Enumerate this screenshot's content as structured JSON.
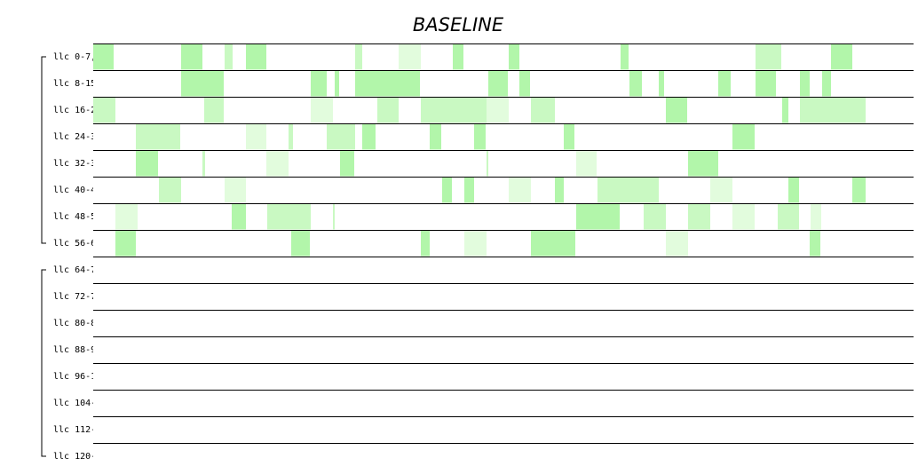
{
  "title": "BASELINE",
  "rows": [
    {
      "label": "llc 0-7,",
      "blocks": [
        [
          0,
          23,
          3
        ],
        [
          99,
          123,
          3
        ],
        [
          148,
          157,
          2
        ],
        [
          172,
          195,
          3
        ],
        [
          295,
          303,
          2
        ],
        [
          344,
          369,
          1
        ],
        [
          405,
          417,
          3
        ],
        [
          468,
          480,
          3
        ],
        [
          594,
          603,
          3
        ],
        [
          746,
          775,
          2
        ],
        [
          831,
          855,
          3
        ]
      ]
    },
    {
      "label": "llc 8-15",
      "blocks": [
        [
          99,
          147,
          3
        ],
        [
          245,
          263,
          3
        ],
        [
          272,
          277,
          3
        ],
        [
          295,
          368,
          3
        ],
        [
          445,
          467,
          3
        ],
        [
          480,
          492,
          3
        ],
        [
          604,
          618,
          3
        ],
        [
          637,
          643,
          3
        ],
        [
          704,
          718,
          3
        ],
        [
          746,
          769,
          3
        ],
        [
          796,
          807,
          3
        ],
        [
          821,
          831,
          3
        ]
      ]
    },
    {
      "label": "llc 16-2",
      "blocks": [
        [
          0,
          25,
          2
        ],
        [
          125,
          147,
          2
        ],
        [
          245,
          270,
          1
        ],
        [
          320,
          344,
          2
        ],
        [
          369,
          444,
          2
        ],
        [
          443,
          468,
          1
        ],
        [
          493,
          520,
          2
        ],
        [
          645,
          669,
          3
        ],
        [
          776,
          783,
          3
        ],
        [
          796,
          870,
          2
        ]
      ]
    },
    {
      "label": "llc 24-3",
      "blocks": [
        [
          48,
          98,
          2
        ],
        [
          172,
          195,
          1
        ],
        [
          220,
          225,
          2
        ],
        [
          263,
          295,
          2
        ],
        [
          303,
          318,
          3
        ],
        [
          379,
          392,
          3
        ],
        [
          429,
          442,
          3
        ],
        [
          530,
          542,
          3
        ],
        [
          720,
          745,
          3
        ]
      ]
    },
    {
      "label": "llc 32-3",
      "blocks": [
        [
          48,
          73,
          3
        ],
        [
          123,
          126,
          2
        ],
        [
          195,
          220,
          1
        ],
        [
          278,
          294,
          3
        ],
        [
          443,
          445,
          2
        ],
        [
          544,
          567,
          1
        ],
        [
          670,
          704,
          3
        ]
      ]
    },
    {
      "label": "llc 40-4",
      "blocks": [
        [
          74,
          99,
          2
        ],
        [
          148,
          172,
          1
        ],
        [
          393,
          404,
          3
        ],
        [
          418,
          429,
          3
        ],
        [
          468,
          493,
          1
        ],
        [
          520,
          530,
          3
        ],
        [
          568,
          637,
          2
        ],
        [
          695,
          720,
          1
        ],
        [
          783,
          795,
          3
        ],
        [
          855,
          870,
          3
        ]
      ]
    },
    {
      "label": "llc 48-5",
      "blocks": [
        [
          25,
          50,
          1
        ],
        [
          156,
          172,
          3
        ],
        [
          196,
          245,
          2
        ],
        [
          270,
          272,
          2
        ],
        [
          544,
          593,
          3
        ],
        [
          620,
          645,
          2
        ],
        [
          670,
          695,
          2
        ],
        [
          720,
          745,
          1
        ],
        [
          771,
          795,
          2
        ],
        [
          808,
          820,
          1
        ]
      ]
    },
    {
      "label": "llc 56-6",
      "blocks": [
        [
          25,
          48,
          3
        ],
        [
          223,
          244,
          3
        ],
        [
          369,
          379,
          3
        ],
        [
          418,
          443,
          1
        ],
        [
          493,
          543,
          3
        ],
        [
          645,
          670,
          1
        ],
        [
          807,
          819,
          3
        ]
      ]
    },
    {
      "label": "llc 64-7",
      "blocks": []
    },
    {
      "label": "llc 72-7",
      "blocks": []
    },
    {
      "label": "llc 80-8",
      "blocks": []
    },
    {
      "label": "llc 88-9",
      "blocks": []
    },
    {
      "label": "llc 96-1",
      "blocks": []
    },
    {
      "label": "llc 104-",
      "blocks": []
    },
    {
      "label": "llc 112-",
      "blocks": []
    },
    {
      "label": "llc 120-",
      "blocks": []
    }
  ]
}
